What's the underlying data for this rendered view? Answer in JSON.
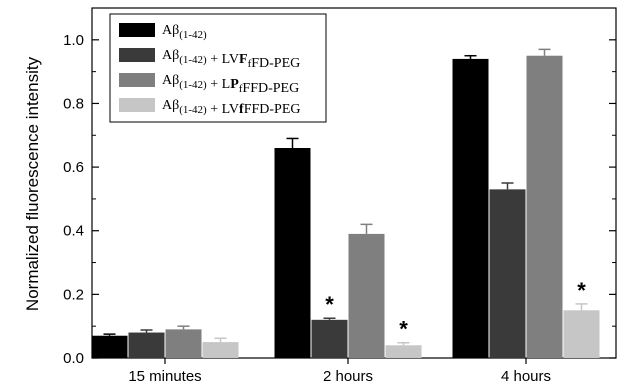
{
  "chart_data": {
    "type": "bar",
    "title": "",
    "xlabel": "",
    "ylabel": "Normalized fluorescence intensity",
    "ylim": [
      0,
      1.1
    ],
    "yticks": [
      "0.0",
      "0.2",
      "0.4",
      "0.6",
      "0.8",
      "1.0"
    ],
    "grid": false,
    "legend_position": "top-left",
    "categories": [
      "15 minutes",
      "2 hours",
      "4 hours"
    ],
    "series": [
      {
        "legend": {
          "a": "Aβ",
          "sub": "(1-42)",
          "b": "",
          "bold1": "",
          "mid": "",
          "bold2": "",
          "c": ""
        },
        "color": "#000000",
        "values": [
          0.07,
          0.66,
          0.94
        ],
        "errors": [
          0.005,
          0.03,
          0.01
        ],
        "marks": [
          "",
          "",
          ""
        ]
      },
      {
        "legend": {
          "a": "Aβ",
          "sub": "(1-42)",
          "b": " + LV",
          "bold1": "F",
          "mid": "f",
          "bold2": "",
          "c": "FD-PEG"
        },
        "color": "#3a3a3a",
        "values": [
          0.08,
          0.12,
          0.53
        ],
        "errors": [
          0.008,
          0.005,
          0.02
        ],
        "marks": [
          "",
          "*",
          ""
        ]
      },
      {
        "legend": {
          "a": "Aβ",
          "sub": "(1-42)",
          "b": " + L",
          "bold1": "P",
          "mid": "f",
          "bold2": "",
          "c": "FFD-PEG"
        },
        "color": "#7f7f7f",
        "values": [
          0.09,
          0.39,
          0.95
        ],
        "errors": [
          0.01,
          0.03,
          0.02
        ],
        "marks": [
          "",
          "",
          ""
        ]
      },
      {
        "legend": {
          "a": "Aβ",
          "sub": "(1-42)",
          "b": " + LV",
          "bold1": "f",
          "mid": "",
          "bold2": "",
          "c": "FFD-PEG"
        },
        "color": "#c6c6c6",
        "values": [
          0.05,
          0.04,
          0.15
        ],
        "errors": [
          0.012,
          0.008,
          0.02
        ],
        "marks": [
          "",
          "*",
          "*"
        ]
      }
    ]
  }
}
